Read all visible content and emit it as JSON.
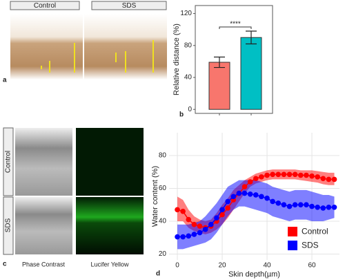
{
  "panel_a": {
    "label": "a",
    "headers": [
      "Control",
      "SDS"
    ]
  },
  "panel_c": {
    "label": "c",
    "rows": [
      "Control",
      "SDS"
    ],
    "columns": [
      "Phase Contrast",
      "Lucifer Yellow"
    ]
  },
  "chart_data": [
    {
      "type": "bar",
      "label": "b",
      "ylabel": "Relative distance (%)",
      "categories": [
        null,
        null
      ],
      "values": [
        59,
        90
      ],
      "errors": [
        6.5,
        8
      ],
      "colors": [
        "#f8766d",
        "#00bfc4"
      ],
      "annotation": "****",
      "ylim": [
        -5,
        130
      ],
      "yticks": [
        0,
        40,
        80,
        120
      ]
    },
    {
      "type": "line",
      "label": "d",
      "xlabel": "Skin depth(µm)",
      "ylabel": "Water content (%)",
      "x": [
        0,
        2.5,
        5,
        7.5,
        10,
        12.5,
        15,
        17.5,
        20,
        22.5,
        25,
        27.5,
        30,
        32.5,
        35,
        37.5,
        40,
        42.5,
        45,
        47.5,
        50,
        52.5,
        55,
        57.5,
        60,
        62.5,
        65,
        67.5,
        70
      ],
      "series": [
        {
          "name": "Control",
          "color": "#ff0000",
          "values": [
            47,
            46,
            41,
            38,
            37,
            36,
            37,
            40,
            44,
            48,
            53,
            57,
            61,
            64,
            66,
            67,
            68,
            68.5,
            68.5,
            68.5,
            68.5,
            68.5,
            68,
            68,
            67.5,
            67,
            66,
            65.5,
            65.5
          ],
          "lower": [
            40,
            40,
            36,
            34,
            33,
            32,
            33,
            35,
            38,
            42,
            47,
            52,
            57,
            61,
            63,
            64,
            65,
            65.5,
            65.5,
            65.5,
            65.5,
            65.5,
            65,
            64.5,
            64,
            63.5,
            62.5,
            62,
            62
          ],
          "upper": [
            55,
            53,
            47,
            43,
            41,
            40,
            41,
            45,
            50,
            54,
            59,
            62,
            65,
            67,
            69,
            70,
            71,
            71.5,
            71.5,
            71.5,
            71.5,
            71.5,
            71,
            71,
            71,
            70.5,
            70,
            69.5,
            69.5
          ]
        },
        {
          "name": "SDS",
          "color": "#0000ff",
          "values": [
            30.5,
            30.5,
            31,
            32,
            33,
            35,
            38,
            42,
            47,
            52,
            55,
            57,
            57,
            56.5,
            56,
            55,
            54,
            52,
            51,
            50,
            49,
            50,
            50,
            50,
            49,
            48.5,
            48,
            48.5,
            48.5
          ],
          "lower": [
            23,
            23,
            24,
            25,
            26,
            27,
            29,
            33,
            38,
            43,
            47,
            49,
            49,
            48,
            47,
            46,
            45,
            43,
            42,
            41,
            40,
            41,
            41,
            41,
            40,
            40,
            40,
            41,
            42
          ],
          "upper": [
            38,
            38,
            38,
            39,
            40,
            43,
            47,
            51,
            56,
            61,
            63,
            65,
            65,
            65,
            65,
            64,
            63,
            61,
            60,
            59,
            58,
            59,
            59,
            59,
            58,
            57,
            56,
            56,
            55
          ]
        }
      ],
      "xlim": [
        -3.7,
        72.3
      ],
      "ylim": [
        16.4,
        93.9
      ],
      "xticks": [
        0,
        20,
        40,
        60
      ],
      "yticks": [
        20,
        40,
        60,
        80
      ],
      "grid": true,
      "legend": "bottom-right"
    }
  ]
}
